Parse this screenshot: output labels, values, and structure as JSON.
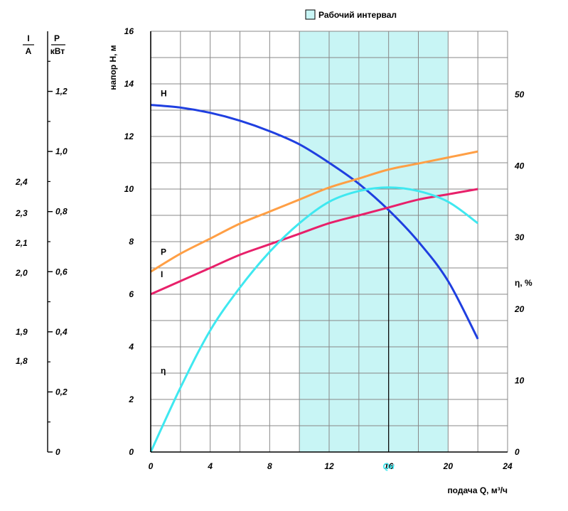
{
  "chart_data": {
    "type": "line",
    "legend": {
      "label": "Рабочий интервал",
      "color": "#c8f5f5",
      "placement": "top"
    },
    "working_interval": {
      "x_from": 10,
      "x_to": 20
    },
    "x_axis": {
      "label": "подача Q, м³/ч",
      "min": 0,
      "max": 24,
      "ticks": [
        "0",
        "4",
        "8",
        "12",
        "16",
        "20",
        "24"
      ]
    },
    "head_axis": {
      "label": "напор H, м",
      "min": 0,
      "max": 16,
      "ticks": [
        "0",
        "2",
        "4",
        "6",
        "8",
        "10",
        "12",
        "14",
        "16"
      ]
    },
    "efficiency_axis": {
      "label": "η, %",
      "min": 0,
      "max": 50,
      "ticks": [
        "0",
        "10",
        "20",
        "30",
        "40",
        "50"
      ]
    },
    "power_axis": {
      "label_top": "P",
      "label_bottom": "кВт",
      "min": 0,
      "max": 1.4,
      "ticks": [
        "0",
        "0,2",
        "0,4",
        "0,6",
        "0,8",
        "1,0",
        "1,2"
      ]
    },
    "current_axis": {
      "label_top": "I",
      "label_bottom": "A",
      "ticks": [
        "1,8",
        "1,9",
        "2,0",
        "2,1",
        "2,3",
        "2,4"
      ]
    },
    "nominal_marker": {
      "x": 16,
      "label": "Qн"
    },
    "series": [
      {
        "name": "H",
        "color": "#1f3fe0",
        "x": [
          0,
          2,
          4,
          6,
          8,
          10,
          12,
          14,
          16,
          18,
          20,
          22
        ],
        "y": [
          13.2,
          13.1,
          12.9,
          12.6,
          12.2,
          11.7,
          11.0,
          10.2,
          9.2,
          8.0,
          6.5,
          4.3
        ]
      },
      {
        "name": "P",
        "color": "#ff9f45",
        "x": [
          0,
          2,
          4,
          6,
          8,
          10,
          12,
          14,
          16,
          18,
          20,
          22
        ],
        "y": [
          0.6,
          0.66,
          0.71,
          0.76,
          0.8,
          0.84,
          0.88,
          0.91,
          0.94,
          0.96,
          0.98,
          1.0
        ]
      },
      {
        "name": "I",
        "color": "#e8206a",
        "x": [
          0,
          2,
          4,
          6,
          8,
          10,
          12,
          14,
          16,
          18,
          20,
          22
        ],
        "y": [
          6.0,
          6.5,
          7.0,
          7.5,
          7.9,
          8.3,
          8.7,
          9.0,
          9.3,
          9.6,
          9.8,
          10.0
        ]
      },
      {
        "name": "η",
        "color": "#3fe8f0",
        "x": [
          0,
          2,
          4,
          6,
          8,
          10,
          12,
          14,
          16,
          18,
          20,
          22
        ],
        "y": [
          0,
          9,
          17,
          23,
          28,
          32,
          35,
          36.5,
          37,
          36.5,
          35,
          32
        ]
      }
    ]
  }
}
